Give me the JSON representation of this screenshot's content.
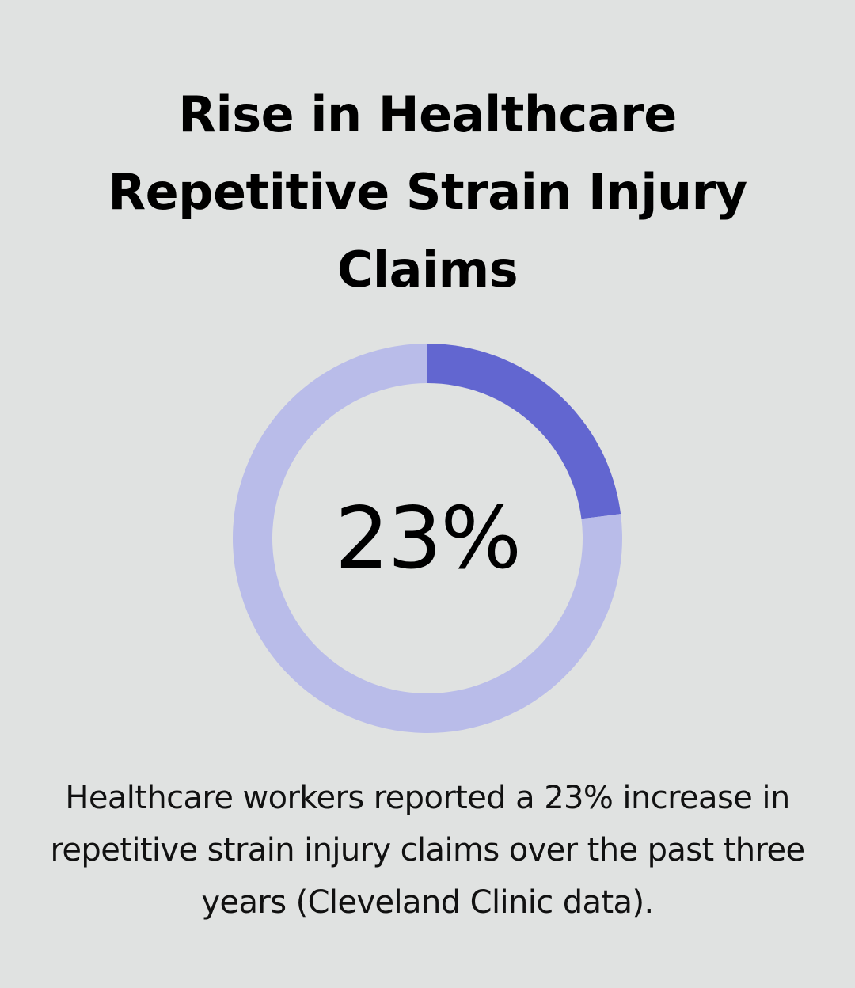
{
  "title": "Rise in Healthcare Repetitive Strain Injury Claims",
  "center_label": "23%",
  "caption": "Healthcare workers reported a 23% increase in repetitive strain injury claims over the past three years (Cleveland Clinic data).",
  "colors": {
    "background": "#e0e2e1",
    "highlight": "#6266d0",
    "remainder": "#b9bce9",
    "text": "#000000"
  },
  "chart_data": {
    "type": "pie",
    "style": "donut",
    "title": "Rise in Healthcare Repetitive Strain Injury Claims",
    "values": [
      23,
      77
    ],
    "center_label": "23%",
    "legend": "none"
  }
}
